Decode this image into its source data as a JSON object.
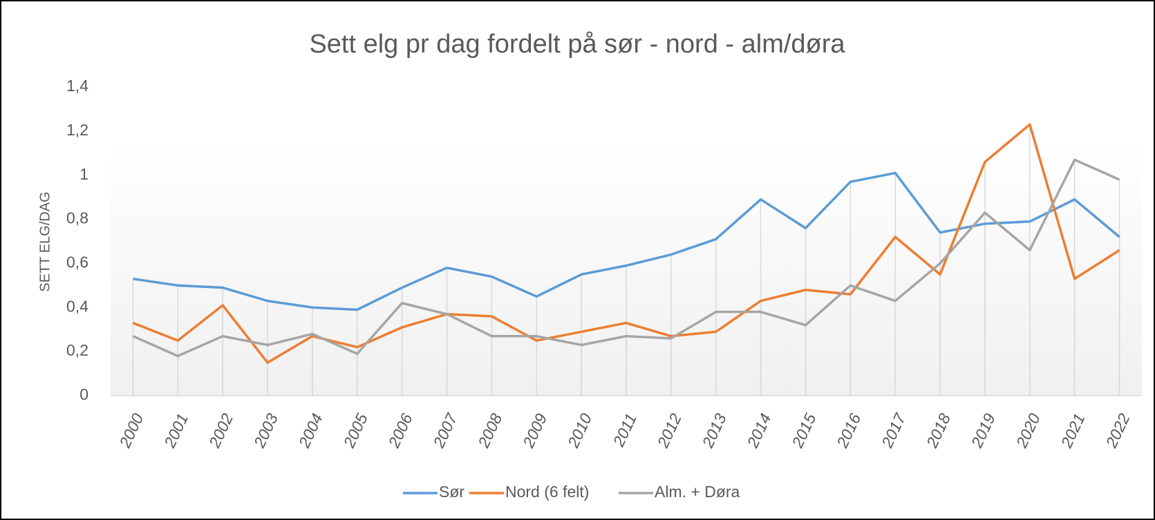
{
  "chart_data": {
    "type": "line",
    "title": "Sett elg pr dag fordelt på sør - nord - alm/døra",
    "y_label": "SETT ELG/DAG",
    "categories": [
      "2000",
      "2001",
      "2002",
      "2003",
      "2004",
      "2005",
      "2006",
      "2007",
      "2008",
      "2009",
      "2010",
      "2011",
      "2012",
      "2013",
      "2014",
      "2015",
      "2016",
      "2017",
      "2018",
      "2019",
      "2020",
      "2021",
      "2022"
    ],
    "series": [
      {
        "name": "Sør",
        "color": "#5b9bd5",
        "values": [
          0.53,
          0.5,
          0.49,
          0.43,
          0.4,
          0.39,
          0.49,
          0.58,
          0.54,
          0.45,
          0.55,
          0.59,
          0.64,
          0.71,
          0.89,
          0.76,
          0.97,
          1.01,
          0.74,
          0.78,
          0.79,
          0.89,
          0.72
        ]
      },
      {
        "name": "Nord (6 felt)",
        "color": "#ed7d31",
        "values": [
          0.33,
          0.25,
          0.41,
          0.15,
          0.27,
          0.22,
          0.31,
          0.37,
          0.36,
          0.25,
          0.29,
          0.33,
          0.27,
          0.29,
          0.43,
          0.48,
          0.46,
          0.72,
          0.55,
          1.06,
          1.23,
          0.53,
          0.66
        ]
      },
      {
        "name": "Alm. + Døra",
        "color": "#a5a5a5",
        "values": [
          0.27,
          0.18,
          0.27,
          0.23,
          0.28,
          0.19,
          0.42,
          0.37,
          0.27,
          0.27,
          0.23,
          0.27,
          0.26,
          0.38,
          0.38,
          0.32,
          0.5,
          0.43,
          0.6,
          0.83,
          0.66,
          1.07,
          0.98
        ]
      }
    ],
    "ylim": [
      0,
      1.4
    ],
    "yticks": [
      0,
      {
        "value": 0.2,
        "label": "0,2"
      },
      {
        "value": 0.4,
        "label": "0,4"
      },
      {
        "value": 0.6,
        "label": "0,6"
      },
      {
        "value": 0.8,
        "label": "0,8"
      },
      1,
      {
        "value": 1.2,
        "label": "1,2"
      },
      {
        "value": 1.4,
        "label": "1,4"
      }
    ],
    "legend": "bottom"
  }
}
